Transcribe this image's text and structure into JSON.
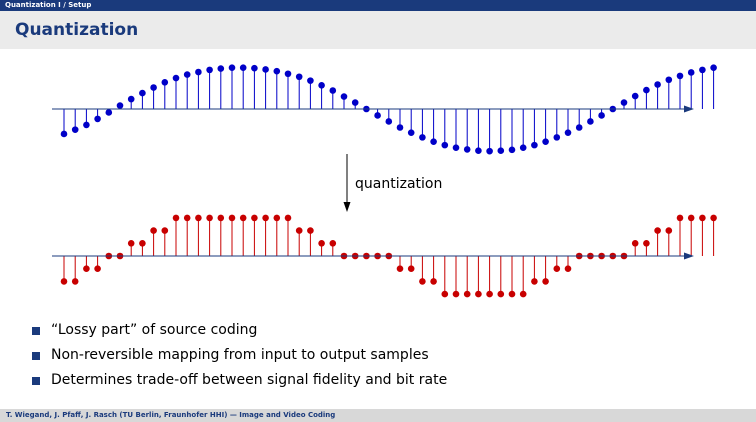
{
  "header": {
    "breadcrumb": "Quantization I  /  Setup"
  },
  "slide": {
    "title": "Quantization"
  },
  "diagram": {
    "arrow_label": "quantization",
    "original_color": "#0000c8",
    "quantized_color": "#c80000",
    "axis_color": "#1a3a7c",
    "original_samples": [
      -0.58,
      -0.48,
      -0.37,
      -0.23,
      -0.08,
      0.08,
      0.23,
      0.37,
      0.5,
      0.62,
      0.72,
      0.8,
      0.86,
      0.91,
      0.94,
      0.96,
      0.96,
      0.95,
      0.92,
      0.88,
      0.82,
      0.75,
      0.66,
      0.55,
      0.43,
      0.29,
      0.15,
      0.0,
      -0.15,
      -0.29,
      -0.43,
      -0.55,
      -0.66,
      -0.76,
      -0.84,
      -0.9,
      -0.94,
      -0.97,
      -0.98,
      -0.97,
      -0.95,
      -0.9,
      -0.84,
      -0.76,
      -0.66,
      -0.55,
      -0.43,
      -0.29,
      -0.15,
      0.0,
      0.15,
      0.3,
      0.44,
      0.57,
      0.68,
      0.77,
      0.85,
      0.91,
      0.96
    ],
    "quantized_samples": [
      -2,
      -2,
      -1,
      -1,
      0,
      0,
      1,
      1,
      2,
      2,
      3,
      3,
      3,
      3,
      3,
      3,
      3,
      3,
      3,
      3,
      3,
      2,
      2,
      1,
      1,
      0,
      0,
      0,
      0,
      0,
      -1,
      -1,
      -2,
      -2,
      -3,
      -3,
      -3,
      -3,
      -3,
      -3,
      -3,
      -3,
      -2,
      -2,
      -1,
      -1,
      0,
      0,
      0,
      0,
      0,
      1,
      1,
      2,
      2,
      3,
      3,
      3,
      3
    ]
  },
  "bullets": [
    "“Lossy part” of source coding",
    "Non-reversible mapping from input to output samples",
    "Determines trade-off between signal fidelity and bit rate"
  ],
  "footer": {
    "text": "T. Wiegand, J. Pfaff, J. Rasch (TU Berlin, Fraunhofer HHI)  —  Image and Video Coding"
  }
}
